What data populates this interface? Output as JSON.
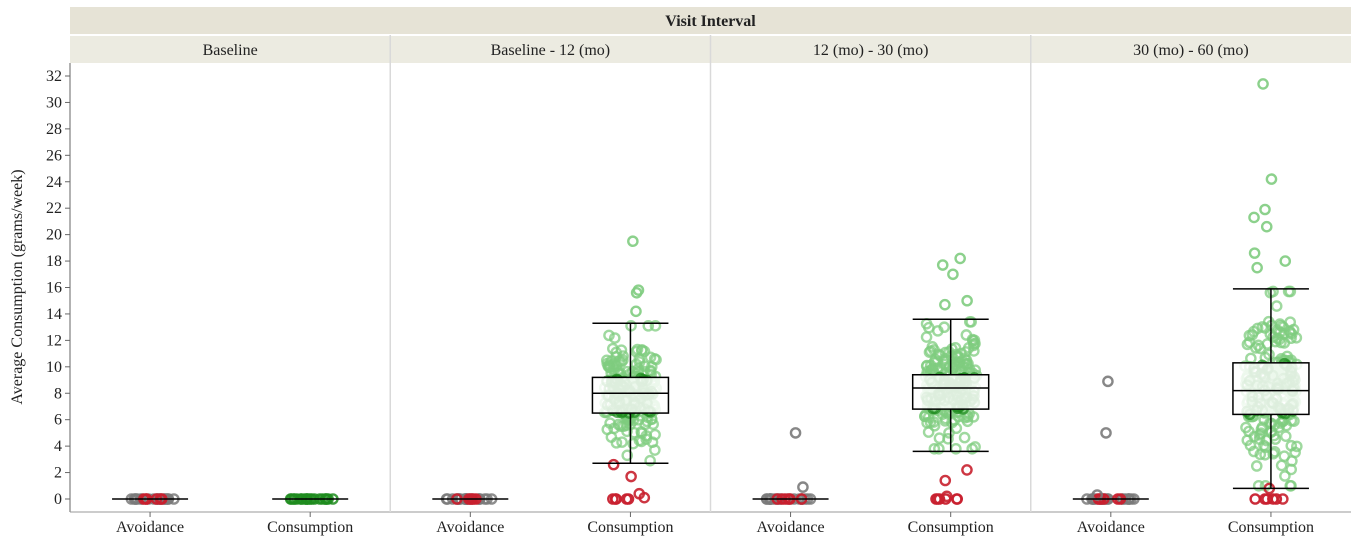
{
  "chart_data": {
    "type": "box",
    "title": "Visit Interval",
    "ylabel": "Average Consumption (grams/week)",
    "ylim": [
      0,
      32
    ],
    "yticks": [
      0,
      2,
      4,
      6,
      8,
      10,
      12,
      14,
      16,
      18,
      20,
      22,
      24,
      26,
      28,
      30,
      32
    ],
    "grid": false,
    "panels": [
      {
        "label": "Baseline",
        "groups": [
          {
            "category": "Avoidance",
            "median": 0,
            "q1": 0,
            "q3": 0,
            "whisker_low": 0,
            "whisker_high": 0,
            "outliers": []
          },
          {
            "category": "Consumption",
            "median": 0,
            "q1": 0,
            "q3": 0,
            "whisker_low": 0,
            "whisker_high": 0,
            "outliers": []
          }
        ]
      },
      {
        "label": "Baseline - 12 (mo)",
        "groups": [
          {
            "category": "Avoidance",
            "median": 0,
            "q1": 0,
            "q3": 0,
            "whisker_low": 0,
            "whisker_high": 0,
            "outliers": []
          },
          {
            "category": "Consumption",
            "median": 8.0,
            "q1": 6.5,
            "q3": 9.2,
            "whisker_low": 2.7,
            "whisker_high": 13.3,
            "outliers": [
              19.5,
              15.8,
              15.6,
              14.2,
              0.4,
              0.1,
              1.7,
              2.6
            ]
          }
        ]
      },
      {
        "label": "12 (mo) - 30 (mo)",
        "groups": [
          {
            "category": "Avoidance",
            "median": 0,
            "q1": 0,
            "q3": 0,
            "whisker_low": 0,
            "whisker_high": 0,
            "outliers": [
              5.0,
              0.9
            ]
          },
          {
            "category": "Consumption",
            "median": 8.4,
            "q1": 6.8,
            "q3": 9.4,
            "whisker_low": 3.6,
            "whisker_high": 13.6,
            "outliers": [
              18.2,
              17.7,
              17.0,
              15.0,
              14.7,
              2.2,
              1.4,
              0.2,
              0.0
            ]
          }
        ]
      },
      {
        "label": "30 (mo) - 60 (mo)",
        "groups": [
          {
            "category": "Avoidance",
            "median": 0,
            "q1": 0,
            "q3": 0,
            "whisker_low": 0,
            "whisker_high": 0,
            "outliers": [
              8.9,
              5.0,
              0.3
            ]
          },
          {
            "category": "Consumption",
            "median": 8.2,
            "q1": 6.4,
            "q3": 10.3,
            "whisker_low": 0.8,
            "whisker_high": 15.9,
            "outliers": [
              31.4,
              24.2,
              21.9,
              21.3,
              20.6,
              18.6,
              18.0,
              17.5,
              0.8,
              0.0
            ]
          }
        ]
      }
    ],
    "point_colors": {
      "consumption_light": "#7fcc7f",
      "consumption_dark": "#1e8c1e",
      "avoidance_grey": "#7a7a7a",
      "red": "#c8202e"
    }
  }
}
